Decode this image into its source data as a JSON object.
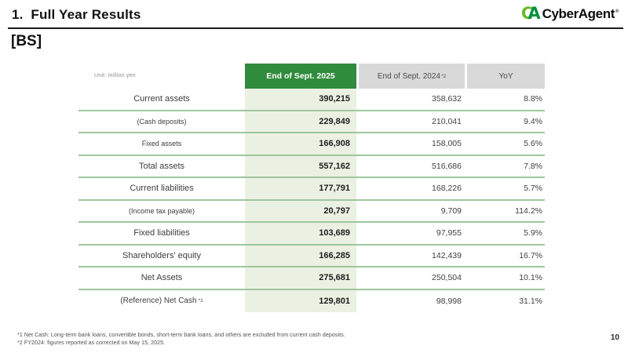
{
  "slide": {
    "title": "1.  Full Year Results",
    "section_label": "[BS]",
    "page_number": "10"
  },
  "logo": {
    "mark_c": "C",
    "mark_a": "A",
    "text": "CyberAgent",
    "reg": "®"
  },
  "table": {
    "unit_note": "Unit: million yen",
    "headers": {
      "col_2025": "End of Sept. 2025",
      "col_2024": "End of Sept. 2024",
      "col_2024_sup": "*2",
      "col_yoy": "YoY"
    },
    "rows": [
      {
        "label": "Current assets",
        "end_sept_2025": "390,215",
        "end_sept_2024": "358,632",
        "yoy": "8.8%"
      },
      {
        "label": "(Cash deposits)",
        "end_sept_2025": "229,849",
        "end_sept_2024": "210,041",
        "yoy": "9.4%"
      },
      {
        "label": "Fixed assets",
        "end_sept_2025": "166,908",
        "end_sept_2024": "158,005",
        "yoy": "5.6%"
      },
      {
        "label": "Total assets",
        "end_sept_2025": "557,162",
        "end_sept_2024": "516,686",
        "yoy": "7.8%"
      },
      {
        "label": "Current liabilities",
        "end_sept_2025": "177,791",
        "end_sept_2024": "168,226",
        "yoy": "5.7%"
      },
      {
        "label": "(Income tax payable)",
        "end_sept_2025": "20,797",
        "end_sept_2024": "9,709",
        "yoy": "114.2%"
      },
      {
        "label": "Fixed liabilities",
        "end_sept_2025": "103,689",
        "end_sept_2024": "97,955",
        "yoy": "5.9%"
      },
      {
        "label": "Shareholders' equity",
        "end_sept_2025": "166,285",
        "end_sept_2024": "142,439",
        "yoy": "16.7%"
      },
      {
        "label": "Net Assets",
        "end_sept_2025": "275,681",
        "end_sept_2024": "250,504",
        "yoy": "10.1%"
      },
      {
        "label": "(Reference) Net Cash",
        "label_sup": "*1",
        "end_sept_2025": "129,801",
        "end_sept_2024": "98,998",
        "yoy": "31.1%"
      }
    ]
  },
  "footnotes": [
    "*1  Net Cash: Long-term bank loans, convertible bonds, short-term bank loans, and others are excluded from current cash deposits.",
    "*2  FY2024: figures reported as corrected on May 15, 2025."
  ],
  "colors": {
    "accent_green": "#2f8c3c",
    "highlight_column_green": "#ebf1e2",
    "header_gray": "#d9d9d9",
    "row_separator_green": "#9fc69f",
    "logo_green_light": "#6fb92d",
    "logo_green_dark": "#00913f"
  }
}
